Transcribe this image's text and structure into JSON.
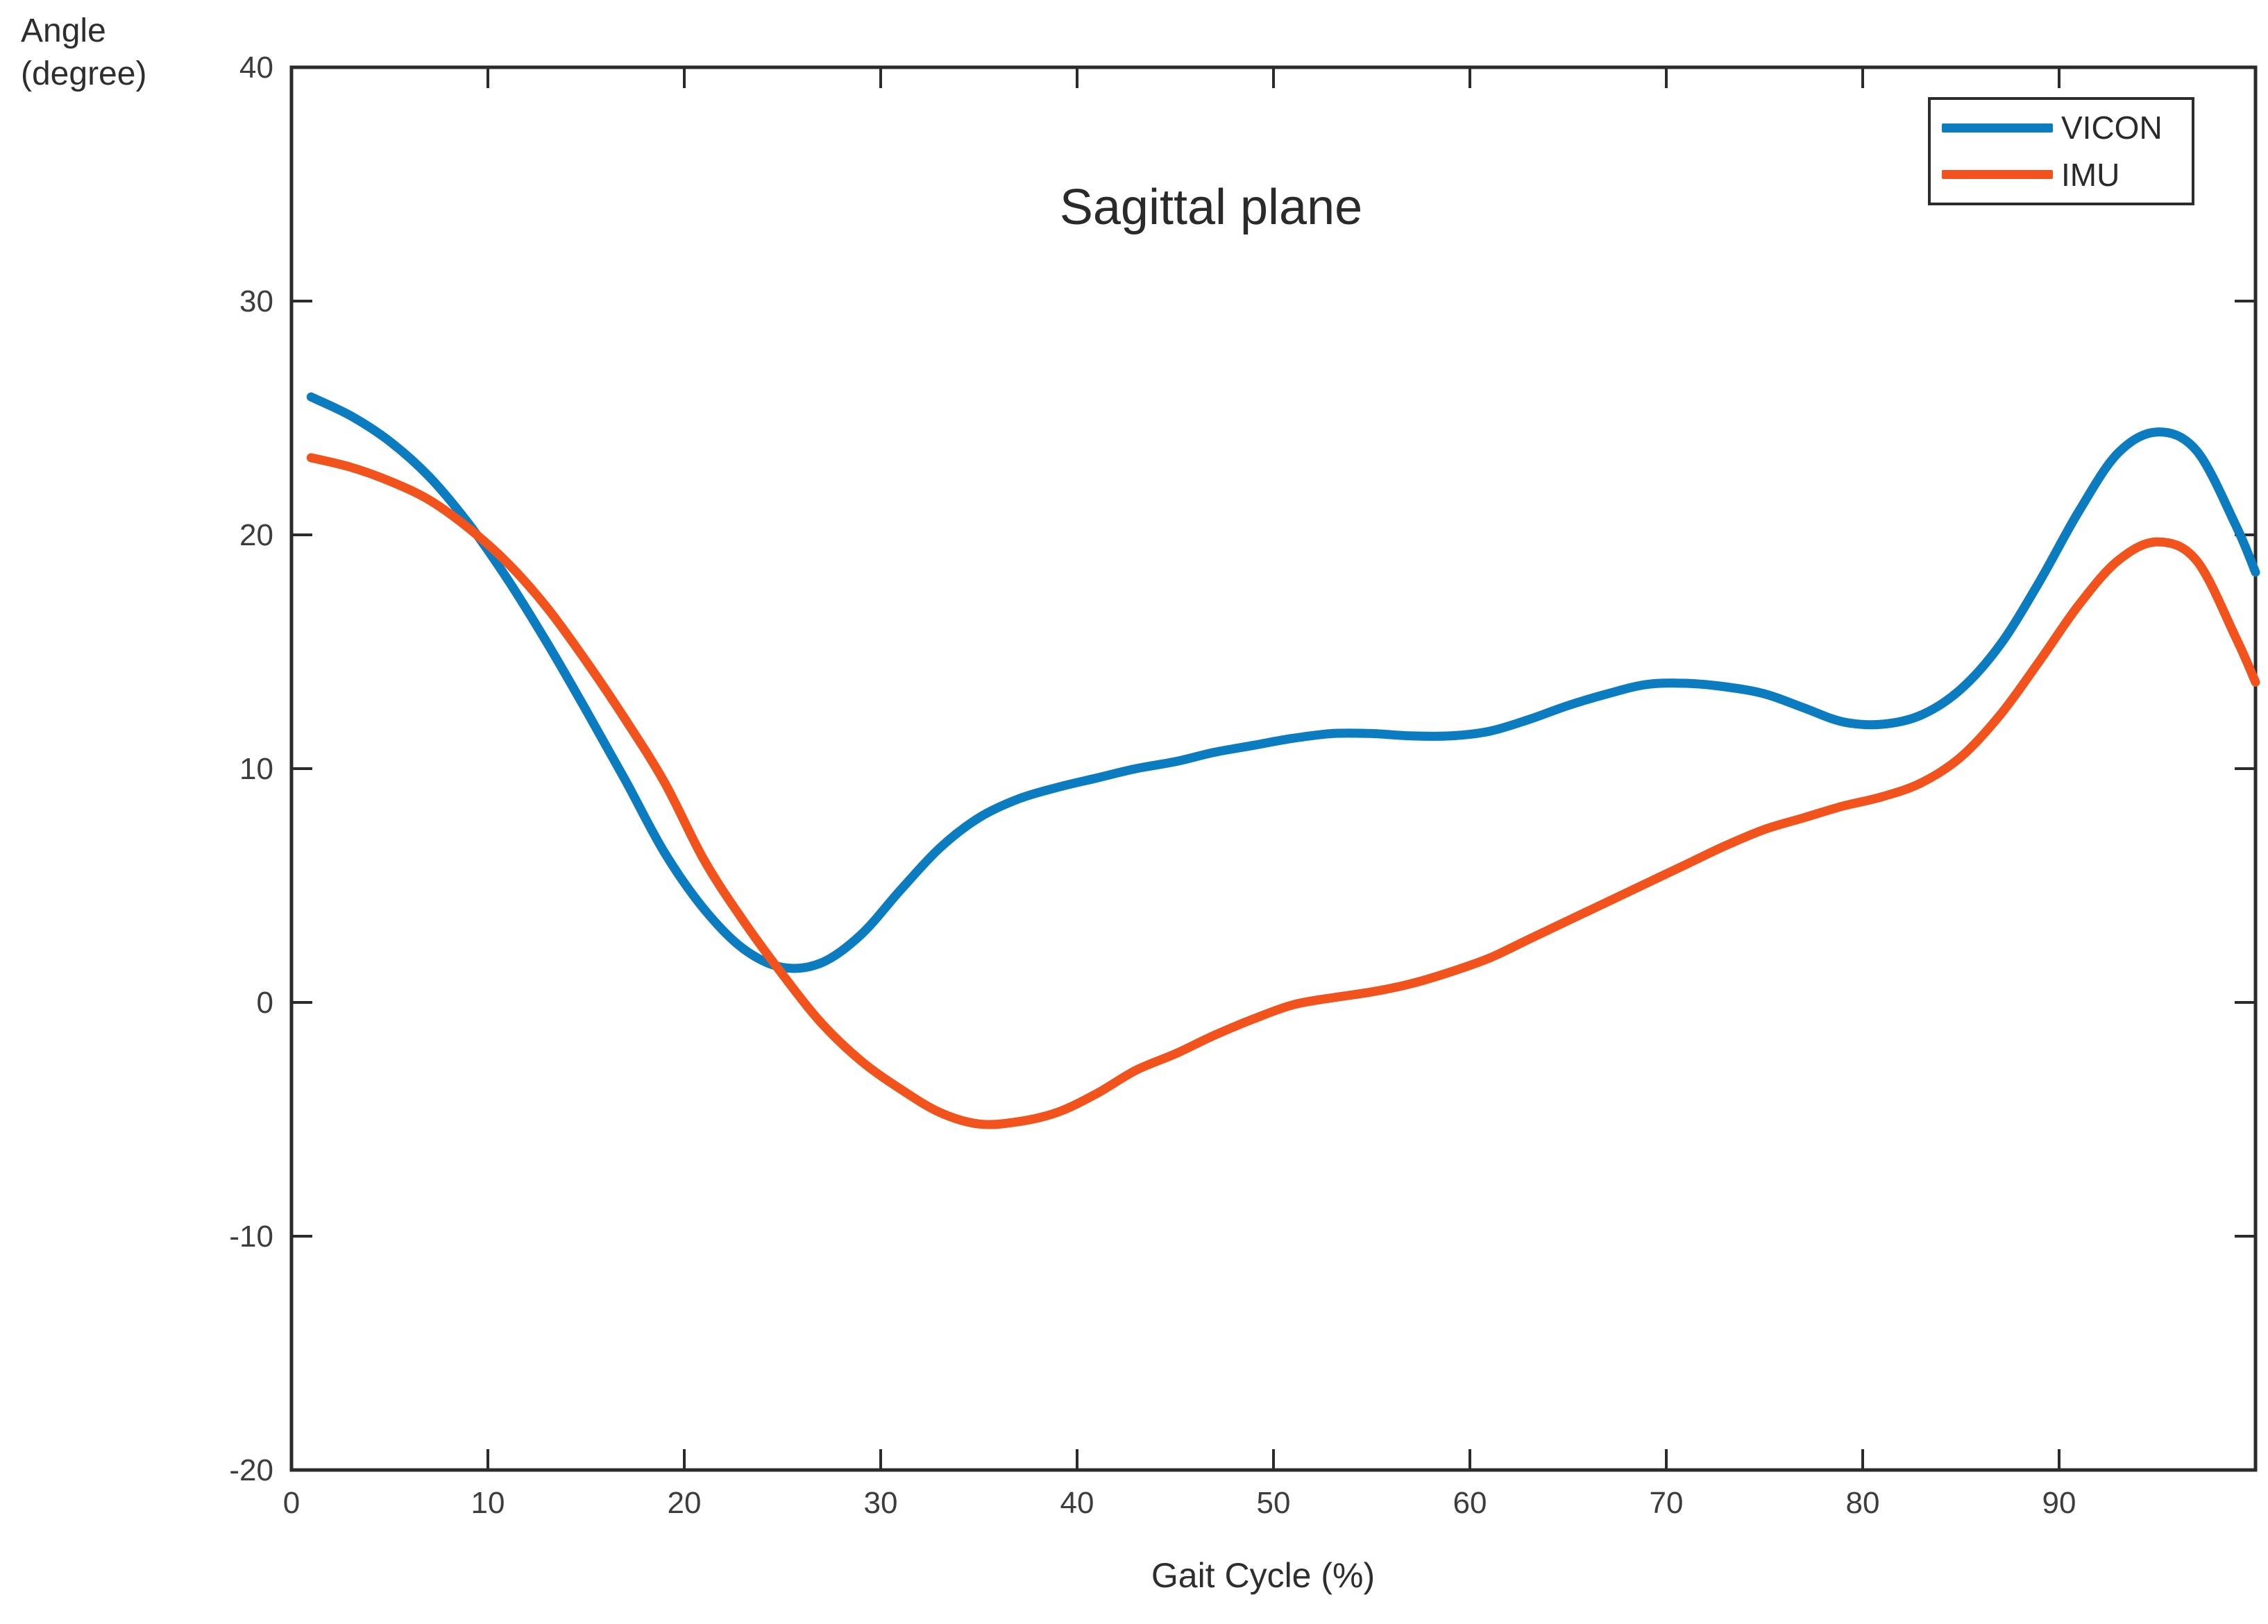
{
  "figure": {
    "title": "Sagittal plane",
    "y_axis_label_line1": "Angle",
    "y_axis_label_line2": "(degree)",
    "x_axis_label": "Gait Cycle (%)"
  },
  "legend": {
    "items": [
      {
        "label": "VICON",
        "color": "#0c7cc0"
      },
      {
        "label": "IMU",
        "color": "#f2521c"
      }
    ]
  },
  "chart_data": {
    "type": "line",
    "title": "Sagittal plane",
    "xlabel": "Gait Cycle (%)",
    "ylabel": "Angle (degree)",
    "xlim": [
      0,
      100
    ],
    "ylim": [
      -20,
      40
    ],
    "x_ticks": [
      0,
      10,
      20,
      30,
      40,
      50,
      60,
      70,
      80,
      90
    ],
    "y_ticks": [
      -20,
      -10,
      0,
      10,
      20,
      30,
      40
    ],
    "grid": false,
    "legend_position": "top-right",
    "axis_color": "#2b2b2b",
    "tick_label_color": "#3d3d3d",
    "series": [
      {
        "name": "VICON",
        "color": "#0c7cc0",
        "points": [
          [
            1,
            25.9
          ],
          [
            3,
            25.1
          ],
          [
            5,
            24.0
          ],
          [
            7,
            22.5
          ],
          [
            9,
            20.5
          ],
          [
            11,
            18.1
          ],
          [
            13,
            15.4
          ],
          [
            15,
            12.5
          ],
          [
            17,
            9.5
          ],
          [
            19,
            6.4
          ],
          [
            21,
            4.0
          ],
          [
            23,
            2.3
          ],
          [
            25,
            1.5
          ],
          [
            27,
            1.7
          ],
          [
            29,
            2.9
          ],
          [
            31,
            4.8
          ],
          [
            33,
            6.6
          ],
          [
            35,
            7.9
          ],
          [
            37,
            8.7
          ],
          [
            39,
            9.2
          ],
          [
            41,
            9.6
          ],
          [
            43,
            10.0
          ],
          [
            45,
            10.3
          ],
          [
            47,
            10.7
          ],
          [
            49,
            11.0
          ],
          [
            51,
            11.3
          ],
          [
            53,
            11.5
          ],
          [
            55,
            11.5
          ],
          [
            57,
            11.4
          ],
          [
            59,
            11.4
          ],
          [
            61,
            11.6
          ],
          [
            63,
            12.1
          ],
          [
            65,
            12.7
          ],
          [
            67,
            13.2
          ],
          [
            69,
            13.6
          ],
          [
            71,
            13.65
          ],
          [
            73,
            13.5
          ],
          [
            75,
            13.2
          ],
          [
            77,
            12.6
          ],
          [
            79,
            12.0
          ],
          [
            81,
            11.9
          ],
          [
            83,
            12.3
          ],
          [
            85,
            13.4
          ],
          [
            87,
            15.3
          ],
          [
            89,
            18.0
          ],
          [
            91,
            21.0
          ],
          [
            93,
            23.5
          ],
          [
            95,
            24.4
          ],
          [
            97,
            23.6
          ],
          [
            99,
            20.4
          ],
          [
            100,
            18.4
          ]
        ]
      },
      {
        "name": "IMU",
        "color": "#f2521c",
        "points": [
          [
            1,
            23.3
          ],
          [
            3,
            22.9
          ],
          [
            5,
            22.3
          ],
          [
            7,
            21.5
          ],
          [
            9,
            20.3
          ],
          [
            11,
            18.8
          ],
          [
            13,
            16.9
          ],
          [
            15,
            14.6
          ],
          [
            17,
            12.1
          ],
          [
            19,
            9.4
          ],
          [
            21,
            6.1
          ],
          [
            23,
            3.5
          ],
          [
            25,
            1.2
          ],
          [
            27,
            -0.9
          ],
          [
            29,
            -2.5
          ],
          [
            31,
            -3.7
          ],
          [
            33,
            -4.7
          ],
          [
            35,
            -5.2
          ],
          [
            37,
            -5.1
          ],
          [
            39,
            -4.7
          ],
          [
            41,
            -3.9
          ],
          [
            43,
            -2.9
          ],
          [
            45,
            -2.2
          ],
          [
            47,
            -1.4
          ],
          [
            49,
            -0.7
          ],
          [
            51,
            -0.1
          ],
          [
            53,
            0.2
          ],
          [
            55,
            0.45
          ],
          [
            57,
            0.8
          ],
          [
            59,
            1.3
          ],
          [
            61,
            1.9
          ],
          [
            63,
            2.7
          ],
          [
            65,
            3.5
          ],
          [
            67,
            4.3
          ],
          [
            69,
            5.1
          ],
          [
            71,
            5.9
          ],
          [
            73,
            6.7
          ],
          [
            75,
            7.4
          ],
          [
            77,
            7.9
          ],
          [
            79,
            8.4
          ],
          [
            81,
            8.8
          ],
          [
            83,
            9.4
          ],
          [
            85,
            10.5
          ],
          [
            87,
            12.3
          ],
          [
            89,
            14.6
          ],
          [
            91,
            17.0
          ],
          [
            93,
            18.9
          ],
          [
            95,
            19.7
          ],
          [
            97,
            18.9
          ],
          [
            99,
            15.6
          ],
          [
            100,
            13.7
          ]
        ]
      }
    ]
  }
}
